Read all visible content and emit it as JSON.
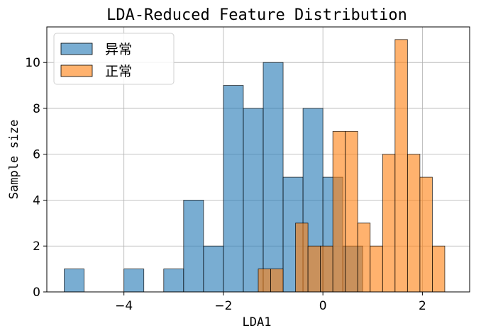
{
  "chart_data": {
    "type": "bar",
    "subtype": "histogram",
    "title": "LDA-Reduced Feature Distribution",
    "xlabel": "LDA1",
    "ylabel": "Sample size",
    "xlim": [
      -5.55,
      2.95
    ],
    "ylim": [
      0,
      11.55
    ],
    "xticks": [
      -4,
      -2,
      0,
      2
    ],
    "yticks": [
      0,
      2,
      4,
      6,
      8,
      10
    ],
    "grid": true,
    "legend_position": "top-left",
    "series": [
      {
        "name": "异常",
        "color": "#1f77b4",
        "opacity": 0.6,
        "bin_width": 0.4,
        "bin_start": [
          -5.2,
          -4.8,
          -4.4,
          -4.0,
          -3.6,
          -3.2,
          -2.8,
          -2.4,
          -2.0,
          -1.6,
          -1.2,
          -0.8,
          -0.4,
          0.0,
          0.4
        ],
        "counts": [
          1,
          0,
          0,
          1,
          0,
          1,
          4,
          2,
          9,
          8,
          10,
          5,
          8,
          5,
          2
        ]
      },
      {
        "name": "正常",
        "color": "#ff7f0e",
        "opacity": 0.6,
        "bin_width": 0.25,
        "bin_start": [
          -1.3,
          -1.05,
          -0.8,
          -0.55,
          -0.3,
          -0.05,
          0.2,
          0.45,
          0.7,
          0.95,
          1.2,
          1.45,
          1.7,
          1.95,
          2.2
        ],
        "counts": [
          1,
          1,
          0,
          3,
          2,
          2,
          7,
          7,
          3,
          2,
          6,
          11,
          6,
          5,
          2
        ]
      }
    ]
  }
}
